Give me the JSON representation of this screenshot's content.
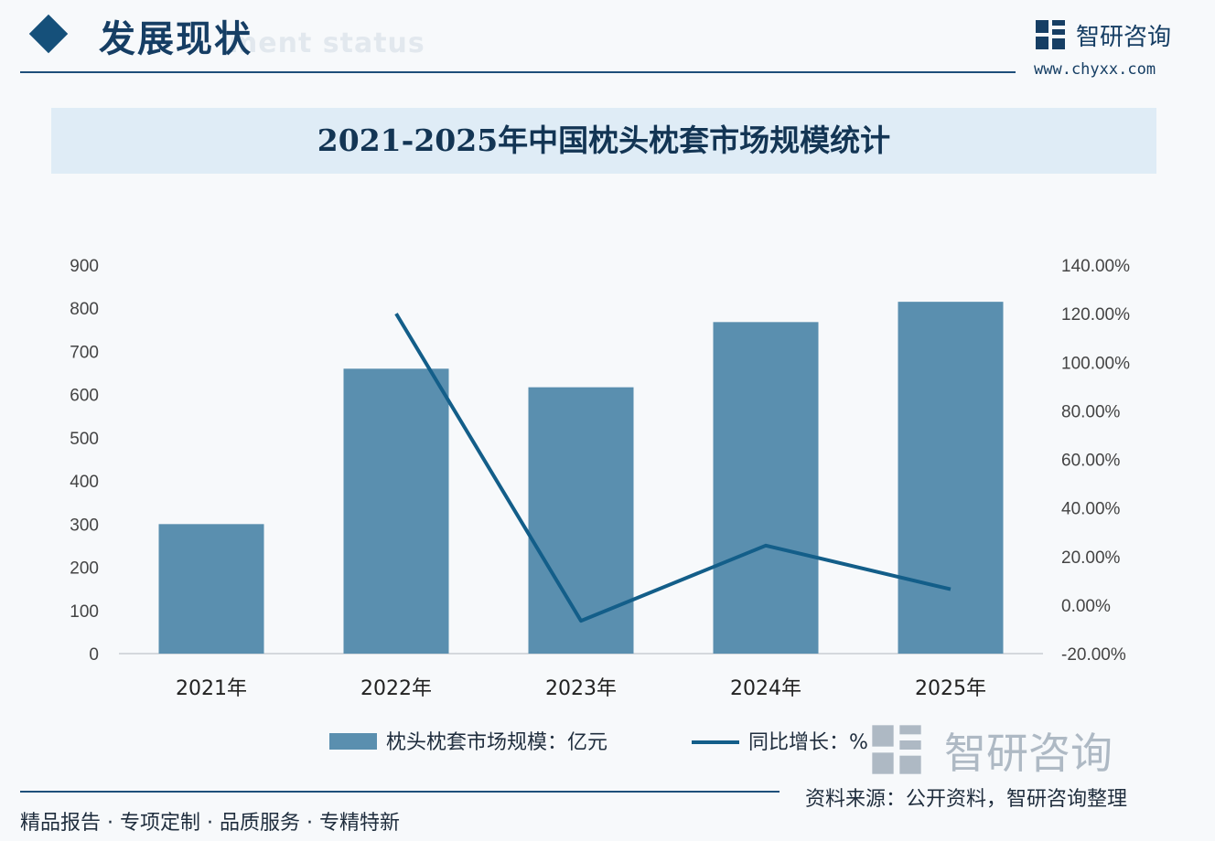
{
  "header": {
    "section_title": "发展现状",
    "section_subtitle": "ment status"
  },
  "brand": {
    "name": "智研咨询",
    "url": "www.chyxx.com"
  },
  "colors": {
    "bar": "#5a8faf",
    "line": "#135e89",
    "title_band": "#dfecf6",
    "accent": "#15507a"
  },
  "chart_data": {
    "type": "bar",
    "title": "2021-2025年中国枕头枕套市场规模统计",
    "categories": [
      "2021年",
      "2022年",
      "2023年",
      "2024年",
      "2025年"
    ],
    "series": [
      {
        "name": "枕头枕套市场规模：亿元",
        "type": "bar",
        "axis": "left",
        "values": [
          300,
          660,
          617,
          768,
          815
        ]
      },
      {
        "name": "同比增长：%",
        "type": "line",
        "axis": "right",
        "values": [
          null,
          120.0,
          -6.5,
          24.5,
          6.5
        ]
      }
    ],
    "y_left": {
      "ylim": [
        0,
        900
      ],
      "ticks": [
        "0",
        "100",
        "200",
        "300",
        "400",
        "500",
        "600",
        "700",
        "800",
        "900"
      ]
    },
    "y_right": {
      "ylim": [
        -20,
        140
      ],
      "ticks": [
        "-20.00%",
        "0.00%",
        "20.00%",
        "40.00%",
        "60.00%",
        "80.00%",
        "100.00%",
        "120.00%",
        "140.00%"
      ]
    },
    "grid": false,
    "legend": "bottom"
  },
  "footer": {
    "tagline": "精品报告 · 专项定制 · 品质服务 · 专精特新",
    "source": "资料来源：公开资料，智研咨询整理"
  }
}
